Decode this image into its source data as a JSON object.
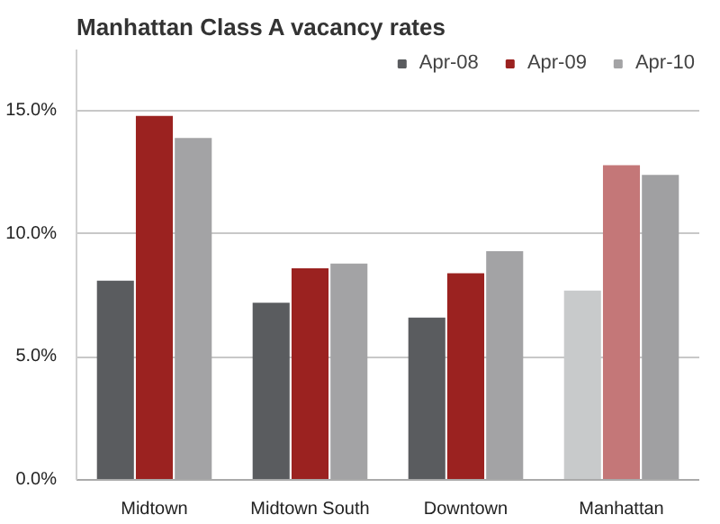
{
  "chart_data": {
    "type": "bar",
    "title": "Manhattan Class A vacancy rates",
    "categories": [
      "Midtown",
      "Midtown South",
      "Downtown",
      "Manhattan"
    ],
    "series": [
      {
        "name": "Apr-08",
        "color": "#5a5c5f",
        "colors": [
          "#5a5c5f",
          "#5a5c5f",
          "#5a5c5f",
          "#c8cacb"
        ],
        "values": [
          8.1,
          7.2,
          6.6,
          7.7
        ]
      },
      {
        "name": "Apr-09",
        "color": "#9b2220",
        "colors": [
          "#9b2220",
          "#9b2220",
          "#9b2220",
          "#c47778"
        ],
        "values": [
          14.8,
          8.6,
          8.4,
          12.8
        ]
      },
      {
        "name": "Apr-10",
        "color": "#a3a3a5",
        "colors": [
          "#a3a3a5",
          "#a3a3a5",
          "#a3a3a5",
          "#a0a0a2"
        ],
        "values": [
          13.9,
          8.8,
          9.3,
          12.4
        ]
      }
    ],
    "ylim": [
      0,
      17.5
    ],
    "yticks": [
      {
        "value": 0,
        "label": "0.0%"
      },
      {
        "value": 5,
        "label": "5.0%"
      },
      {
        "value": 10,
        "label": "10.0%"
      },
      {
        "value": 15,
        "label": "15.0%"
      }
    ],
    "grid": "y",
    "legend": "top right"
  }
}
